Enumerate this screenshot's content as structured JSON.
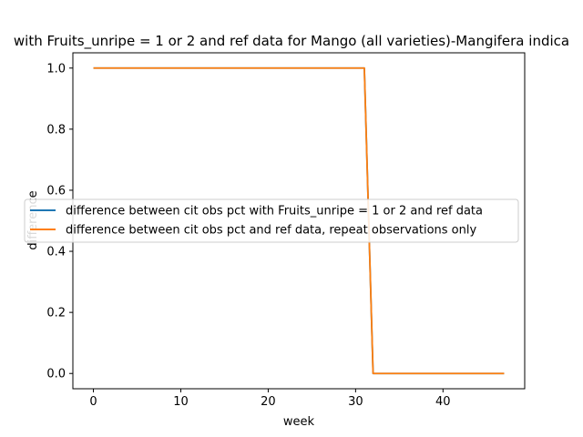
{
  "chart_data": {
    "type": "line",
    "title": "with Fruits_unripe = 1 or 2 and ref data for Mango (all varieties)-Mangifera indica",
    "xlabel": "week",
    "ylabel": "difference",
    "xlim": [
      -2.35,
      49.35
    ],
    "ylim": [
      -0.05,
      1.05
    ],
    "xticks": [
      0,
      10,
      20,
      30,
      40
    ],
    "yticks": [
      0.0,
      0.2,
      0.4,
      0.6,
      0.8,
      1.0
    ],
    "xtick_labels": [
      "0",
      "10",
      "20",
      "30",
      "40"
    ],
    "ytick_labels": [
      "0.0",
      "0.2",
      "0.4",
      "0.6",
      "0.8",
      "1.0"
    ],
    "grid": false,
    "legend_position": "center-left",
    "x": [
      0,
      1,
      2,
      3,
      4,
      5,
      6,
      7,
      8,
      9,
      10,
      11,
      12,
      13,
      14,
      15,
      16,
      17,
      18,
      19,
      20,
      21,
      22,
      23,
      24,
      25,
      26,
      27,
      28,
      29,
      30,
      31,
      32,
      33,
      34,
      35,
      36,
      37,
      38,
      39,
      40,
      41,
      42,
      43,
      44,
      45,
      46,
      47
    ],
    "series": [
      {
        "name": "difference between cit obs pct with Fruits_unripe = 1 or 2 and ref data",
        "color": "#1f77b4",
        "values": [
          1,
          1,
          1,
          1,
          1,
          1,
          1,
          1,
          1,
          1,
          1,
          1,
          1,
          1,
          1,
          1,
          1,
          1,
          1,
          1,
          1,
          1,
          1,
          1,
          1,
          1,
          1,
          1,
          1,
          1,
          1,
          1,
          0,
          0,
          0,
          0,
          0,
          0,
          0,
          0,
          0,
          0,
          0,
          0,
          0,
          0,
          0,
          0
        ]
      },
      {
        "name": "difference between cit obs pct and ref data, repeat observations only",
        "color": "#ff7f0e",
        "values": [
          1,
          1,
          1,
          1,
          1,
          1,
          1,
          1,
          1,
          1,
          1,
          1,
          1,
          1,
          1,
          1,
          1,
          1,
          1,
          1,
          1,
          1,
          1,
          1,
          1,
          1,
          1,
          1,
          1,
          1,
          1,
          1,
          0,
          0,
          0,
          0,
          0,
          0,
          0,
          0,
          0,
          0,
          0,
          0,
          0,
          0,
          0,
          0
        ]
      }
    ]
  }
}
